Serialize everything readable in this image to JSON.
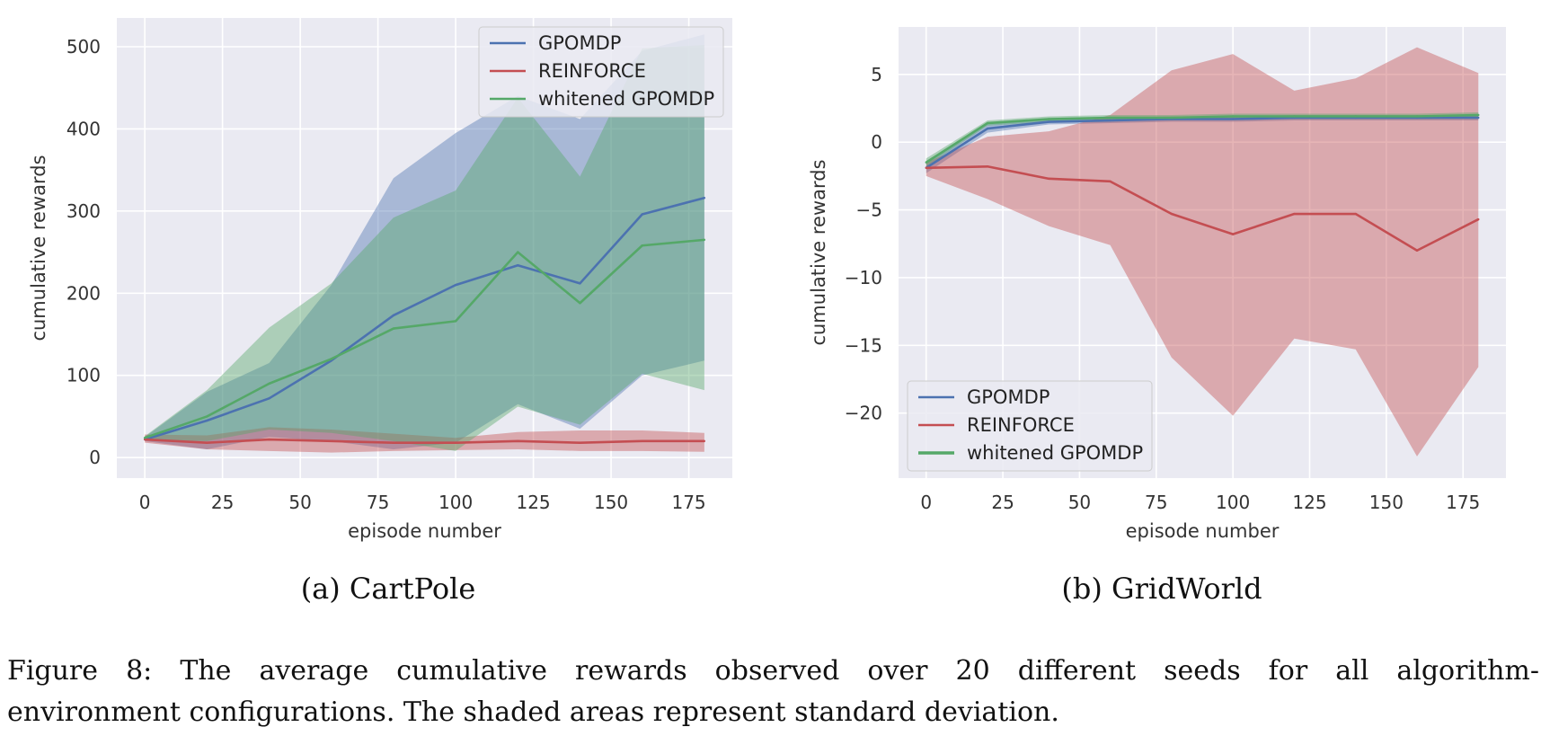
{
  "figure": {
    "caption_line1": "Figure 8:  The average cumulative rewards observed over 20 different seeds for all algorithm-",
    "caption_line2": "environment configurations. The shaded areas represent standard deviation."
  },
  "chart_data": [
    {
      "type": "line",
      "subcaption": "(a) CartPole",
      "xlabel": "episode number",
      "ylabel": "cumulative rewards",
      "x": [
        0,
        20,
        40,
        60,
        80,
        100,
        120,
        140,
        160,
        180
      ],
      "xlim": [
        -9,
        189
      ],
      "ylim": [
        -25,
        535
      ],
      "xticks": [
        0,
        25,
        50,
        75,
        100,
        125,
        150,
        175
      ],
      "yticks": [
        0,
        100,
        200,
        300,
        400,
        500
      ],
      "grid": true,
      "legend_position": "top-right",
      "series": [
        {
          "name": "GPOMDP",
          "color": "#4c72b0",
          "mean": [
            22,
            45,
            72,
            118,
            173,
            210,
            234,
            212,
            296,
            316
          ],
          "upper": [
            25,
            80,
            115,
            210,
            340,
            395,
            440,
            412,
            495,
            515
          ],
          "lower": [
            20,
            10,
            25,
            20,
            10,
            18,
            65,
            35,
            100,
            118
          ]
        },
        {
          "name": "REINFORCE",
          "color": "#c44e52",
          "mean": [
            22,
            18,
            22,
            20,
            18,
            18,
            20,
            18,
            20,
            20
          ],
          "upper": [
            28,
            27,
            37,
            34,
            29,
            24,
            31,
            33,
            33,
            30
          ],
          "lower": [
            18,
            10,
            8,
            6,
            8,
            9,
            10,
            8,
            8,
            7
          ]
        },
        {
          "name": "whitened GPOMDP",
          "color": "#55a868",
          "mean": [
            24,
            50,
            90,
            120,
            157,
            166,
            250,
            188,
            258,
            265
          ],
          "upper": [
            26,
            82,
            158,
            212,
            292,
            325,
            438,
            342,
            498,
            502
          ],
          "lower": [
            22,
            20,
            34,
            30,
            20,
            8,
            62,
            40,
            102,
            82
          ]
        }
      ]
    },
    {
      "type": "line",
      "subcaption": "(b) GridWorld",
      "xlabel": "episode number",
      "ylabel": "cumulative rewards",
      "x": [
        0,
        20,
        40,
        60,
        80,
        100,
        120,
        140,
        160,
        180
      ],
      "xlim": [
        -9,
        189
      ],
      "ylim": [
        -24.8,
        8.5
      ],
      "xticks": [
        0,
        25,
        50,
        75,
        100,
        125,
        150,
        175
      ],
      "yticks": [
        5,
        0,
        -5,
        -10,
        -15,
        -20
      ],
      "ytick_labels": [
        "5",
        "0",
        "−5",
        "−10",
        "−15",
        "−20"
      ],
      "grid": true,
      "legend_position": "bottom-left",
      "series": [
        {
          "name": "GPOMDP",
          "color": "#4c72b0",
          "mean": [
            -1.9,
            1.0,
            1.5,
            1.6,
            1.7,
            1.7,
            1.8,
            1.8,
            1.8,
            1.8
          ],
          "upper": [
            -1.5,
            1.3,
            1.7,
            1.8,
            1.9,
            1.9,
            2.0,
            2.0,
            2.0,
            2.0
          ],
          "lower": [
            -2.3,
            0.7,
            1.3,
            1.4,
            1.5,
            1.5,
            1.6,
            1.6,
            1.6,
            1.6
          ]
        },
        {
          "name": "REINFORCE",
          "color": "#c44e52",
          "mean": [
            -1.9,
            -1.8,
            -2.7,
            -2.9,
            -5.3,
            -6.8,
            -5.3,
            -5.3,
            -8.0,
            -5.7
          ],
          "upper": [
            -1.5,
            0.4,
            0.8,
            2.0,
            5.3,
            6.5,
            3.8,
            4.7,
            7.0,
            5.1
          ],
          "lower": [
            -2.5,
            -4.2,
            -6.2,
            -7.6,
            -15.9,
            -20.2,
            -14.5,
            -15.3,
            -23.2,
            -16.6
          ]
        },
        {
          "name": "whitened GPOMDP",
          "color": "#55a868",
          "mean": [
            -1.5,
            1.4,
            1.7,
            1.8,
            1.8,
            1.9,
            1.9,
            1.9,
            1.9,
            2.0
          ],
          "upper": [
            -1.2,
            1.6,
            1.9,
            2.0,
            2.0,
            2.1,
            2.1,
            2.1,
            2.1,
            2.2
          ],
          "lower": [
            -1.8,
            1.2,
            1.5,
            1.6,
            1.6,
            1.7,
            1.7,
            1.7,
            1.7,
            1.8
          ]
        }
      ]
    }
  ]
}
